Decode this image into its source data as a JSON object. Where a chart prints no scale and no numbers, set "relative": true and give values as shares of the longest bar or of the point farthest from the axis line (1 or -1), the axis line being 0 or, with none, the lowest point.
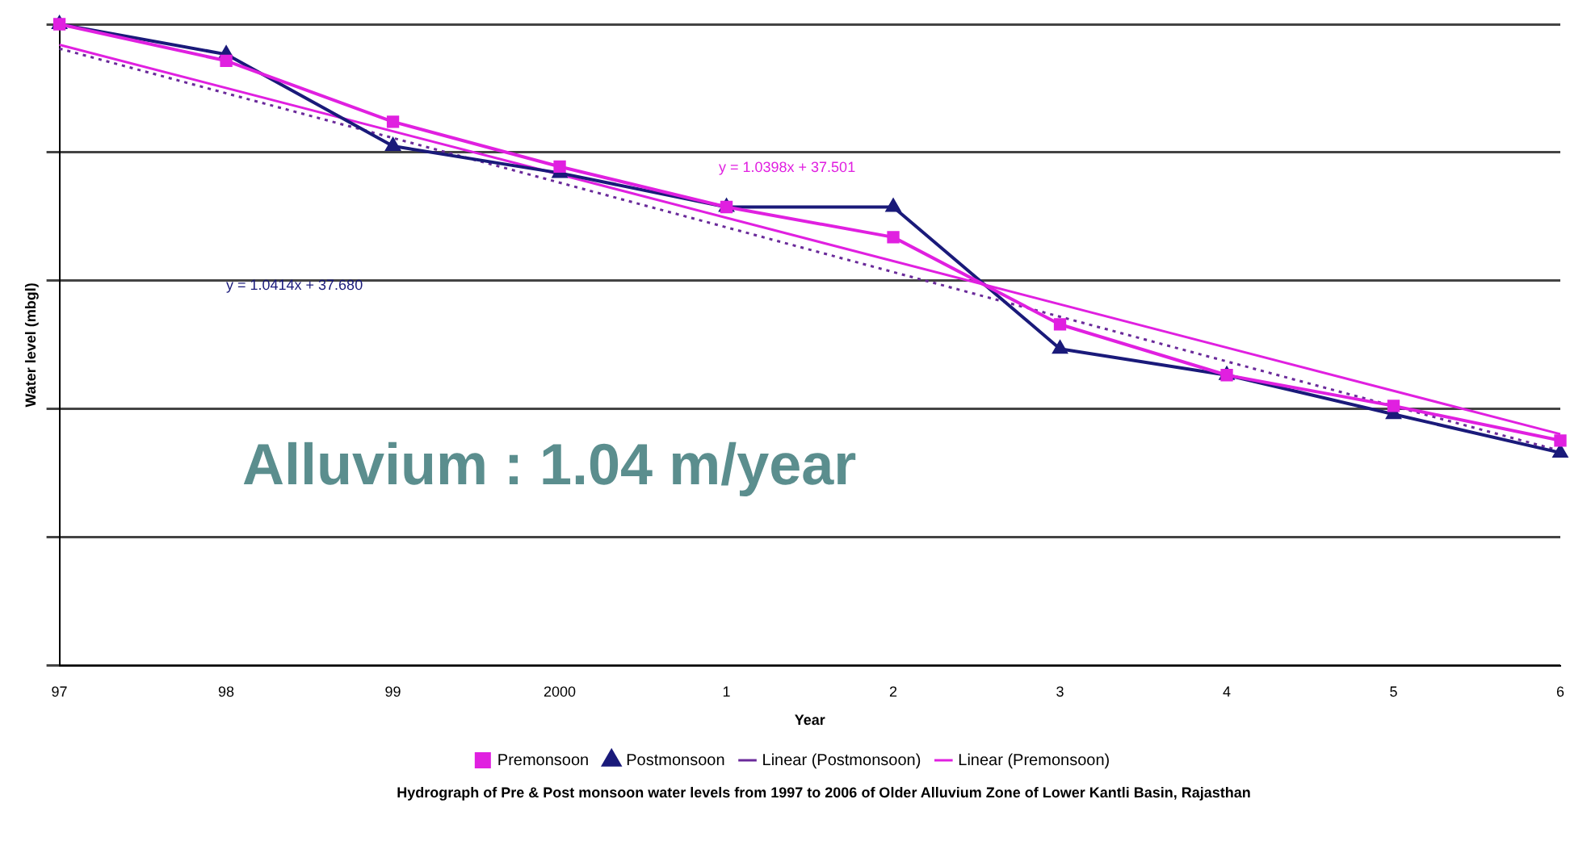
{
  "chart_data": {
    "type": "line",
    "relative": true,
    "xlabel": "Year",
    "ylabel": "Water level (mbgl)",
    "categories": [
      "97",
      "98",
      "99",
      "2000",
      "1",
      "2",
      "3",
      "4",
      "5",
      "6"
    ],
    "series": [
      {
        "name": "Premonsoon",
        "color": "#e020e0",
        "marker": "square",
        "values": [
          1,
          0.943,
          0.848,
          0.778,
          0.715,
          0.668,
          0.532,
          0.453,
          0.405,
          0.351
        ]
      },
      {
        "name": "Postmonsoon",
        "color": "#1a1a7a",
        "marker": "triangle",
        "values": [
          1,
          0.953,
          0.81,
          0.768,
          0.715,
          0.715,
          0.494,
          0.453,
          0.392,
          0.332
        ]
      },
      {
        "name": "Linear (Postmonsoon)",
        "color": "#6a2a9a",
        "marker": "none",
        "line_style": "dotted",
        "x": [
          "97",
          "6"
        ],
        "values": [
          0.962,
          0.335
        ]
      },
      {
        "name": "Linear (Premonsoon)",
        "color": "#e020e0",
        "marker": "none",
        "x": [
          "97",
          "6"
        ],
        "values": [
          0.968,
          0.361
        ]
      }
    ],
    "grid": "y",
    "legend": "bottom",
    "annotations": [
      "y = 1.0398x + 37.501",
      "y = 1.0414x + 37.680",
      "Alluvium : 1.04 m/year",
      "Hydrograph of Pre & Post monsoon water levels from 1997 to 2006 of Older Alluvium Zone of Lower Kantli Basin, Rajasthan"
    ]
  }
}
